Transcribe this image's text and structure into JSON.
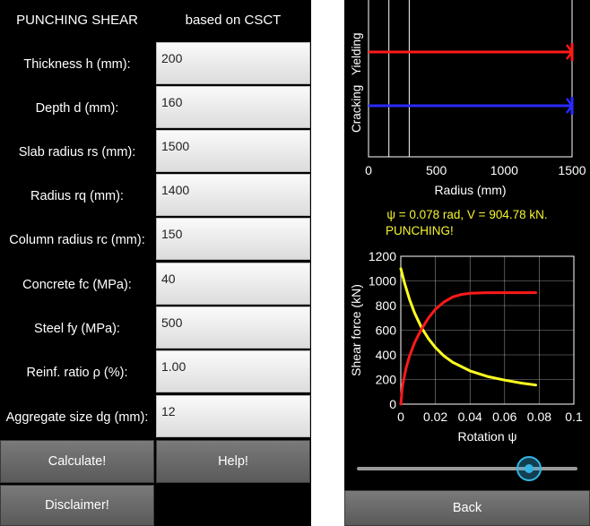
{
  "header": {
    "title": "PUNCHING SHEAR",
    "subtitle": "based on CSCT"
  },
  "fields": [
    {
      "label": "Thickness h (mm):",
      "value": "200"
    },
    {
      "label": "Depth d (mm):",
      "value": "160"
    },
    {
      "label": "Slab radius rs (mm):",
      "value": "1500"
    },
    {
      "label": "Radius rq (mm):",
      "value": "1400"
    },
    {
      "label": "Column radius rc (mm):",
      "value": "150"
    },
    {
      "label": "Concrete fc (MPa):",
      "value": "40"
    },
    {
      "label": "Steel fy (MPa):",
      "value": "500"
    },
    {
      "label": "Reinf. ratio ρ (%):",
      "value": "1.00"
    },
    {
      "label": "Aggregate size dg (mm):",
      "value": "12"
    }
  ],
  "buttons": {
    "calculate": "Calculate!",
    "help": "Help!",
    "disclaimer": "Disclaimer!",
    "back": "Back"
  },
  "result": {
    "line1": "ψ = 0.078 rad, V = 904.78 kN.",
    "line2": "PUNCHING!"
  },
  "slider": {
    "value_fraction": 0.78
  },
  "colors": {
    "yielding": "#ff1a1a",
    "cracking": "#2a2aff",
    "capacity": "#ffff20",
    "load": "#ff1a1a",
    "accent": "#33b5e5"
  },
  "chart_data": [
    {
      "type": "line",
      "xlabel": "Radius (mm)",
      "xlim": [
        0,
        1500
      ],
      "x_ticks": [
        "0",
        "500",
        "1000",
        "1500"
      ],
      "y_labels": [
        "Cracking",
        "Yielding"
      ],
      "vertical_lines_x": [
        150,
        300
      ],
      "series": [
        {
          "name": "Yielding",
          "x": [
            0,
            1500
          ]
        },
        {
          "name": "Cracking",
          "x": [
            0,
            1500
          ]
        }
      ]
    },
    {
      "type": "line",
      "xlabel": "Rotation ψ",
      "ylabel": "Shear force (kN)",
      "xlim": [
        0,
        0.1
      ],
      "ylim": [
        0,
        1200
      ],
      "x_ticks": [
        "0",
        "0.02",
        "0.04",
        "0.06",
        "0.08",
        "0.1"
      ],
      "y_ticks": [
        "0",
        "200",
        "400",
        "600",
        "800",
        "1000",
        "1200"
      ],
      "grid": true,
      "series": [
        {
          "role": "capacity",
          "x": [
            0,
            0.002,
            0.005,
            0.008,
            0.012,
            0.016,
            0.02,
            0.025,
            0.03,
            0.04,
            0.05,
            0.06,
            0.07,
            0.078
          ],
          "y": [
            1100,
            990,
            850,
            740,
            620,
            530,
            460,
            390,
            340,
            270,
            225,
            195,
            170,
            155
          ]
        },
        {
          "role": "load",
          "x": [
            0,
            0.001,
            0.003,
            0.005,
            0.008,
            0.012,
            0.016,
            0.02,
            0.025,
            0.03,
            0.035,
            0.04,
            0.05,
            0.06,
            0.07,
            0.078
          ],
          "y": [
            0,
            150,
            290,
            390,
            500,
            610,
            700,
            770,
            830,
            870,
            890,
            900,
            905,
            905,
            905,
            905
          ]
        }
      ]
    }
  ]
}
